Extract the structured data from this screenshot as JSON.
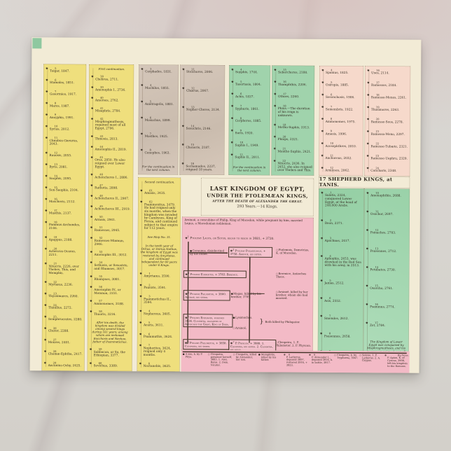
{
  "icons": {
    "crown": "♚",
    "female": "○",
    "male": "●"
  },
  "title_block": {
    "line1": "LAST KINGDOM OF EGYPT,",
    "line2": "UNDER THE PTOLEMÆAN KINGS,",
    "line3": "AFTER THE DEATH OF ALEXANDER THE GREAT.",
    "line4": "293 Years.—14 Kings."
  },
  "shepherd": {
    "header": "17 SHEPHERD KINGS, at TANIS."
  },
  "columns": [
    {
      "title": "kings-of-thebes",
      "entries": [
        {
          "n": "5",
          "t": "Toigar, 1847."
        },
        {
          "n": "6",
          "t": "Stamalas, 1851."
        },
        {
          "n": "7",
          "t": "Gosormies, 1917."
        },
        {
          "n": "8",
          "t": "Mares, 1987."
        },
        {
          "n": "9",
          "t": "Anoyphis, 1991."
        },
        {
          "n": "10",
          "t": "Syrius, 2012."
        },
        {
          "n": "11",
          "t": "Chnubus-Gneurus, 2043."
        },
        {
          "n": "12",
          "t": "Rauosis, 2055."
        },
        {
          "n": "13",
          "t": "Byris, 2081."
        },
        {
          "n": "14",
          "t": "Saophis, 2095."
        },
        {
          "n": "15",
          "t": "Sen-Saophis, 2104."
        },
        {
          "n": "16",
          "t": "Moscheris, 2112."
        },
        {
          "n": "17",
          "t": "Musthis, 2137."
        },
        {
          "n": "18",
          "t": "Pammus-Archondes, 2146."
        },
        {
          "n": "19",
          "t": "Apappus, 2188."
        },
        {
          "n": "20",
          "t": "Achescus-Ocaras, 2211."
        },
        {
          "n": "21",
          "t": "Nitocris, 2226, over Thebes, This, and Memphis."
        },
        {
          "n": "22",
          "t": "Myrtæus, 2236."
        },
        {
          "n": "23",
          "t": "Thyosimares, 2260."
        },
        {
          "n": "24",
          "t": "Thinillus, 2272."
        },
        {
          "n": "25",
          "t": "Semphrucrates, 2280."
        },
        {
          "n": "26",
          "t": "Chuter, 2288."
        },
        {
          "n": "27",
          "t": "Meures, 2401."
        },
        {
          "n": "28",
          "t": "Chomæ-Ephtha, 2417."
        },
        {
          "n": "29",
          "t": "Ancunius-Ochy, 2425."
        }
      ]
    },
    {
      "title": "first-continuation",
      "entries": [
        {
          "note": "First continuation."
        },
        {
          "n": "38",
          "t": "Chebros, 2711."
        },
        {
          "n": "39",
          "t": "Amenophis I., 2736."
        },
        {
          "n": "40",
          "t": "Amerses, 2762."
        },
        {
          "n": "41",
          "t": "Misaphris, 2784."
        },
        {
          "n": "42",
          "t": "Misphragmuthosis, regained most of all Egypt, 2796."
        },
        {
          "n": "43",
          "t": "Thmosis, 2813."
        },
        {
          "n": "44",
          "t": "Amenophis II., 2819."
        },
        {
          "n": "45",
          "t": "Orus, 2850.  He also reigned over Lower Egypt."
        },
        {
          "n": "46",
          "t": "Achencheres I., 2886."
        },
        {
          "n": "47",
          "t": "Rathotis, 2898."
        },
        {
          "n": "48",
          "t": "Achencheres II., 2907."
        },
        {
          "n": "49",
          "t": "Achencheres III., 2919."
        },
        {
          "n": "50",
          "t": "Armais, 2941."
        },
        {
          "n": "51",
          "t": "Ramesses, 2945."
        },
        {
          "n": "52",
          "t": "Ramesses-Miamun, 2946."
        },
        {
          "n": "53",
          "t": "Amenophis III., 3012."
        },
        {
          "n": "54",
          "t": "Sethosis, or Sesostris, and Rhamses, 3017."
        },
        {
          "n": "55",
          "t": "Rhampses, 3081."
        },
        {
          "n": "56",
          "t": "Amenophis IV., or Memnon, 3151."
        },
        {
          "n": "57",
          "t": "Ammenemes, 3188."
        },
        {
          "n": "58",
          "t": "Thuoris, 3216."
        },
        {
          "note": "After his death, the kingdom was divided among several kings during 161 years; among whom are reckoned Bocchoris and Nechao, father of Psammetichus."
        },
        {
          "n": "59",
          "t": "Sabbacon, or So, the Ethiopian, 3377."
        },
        {
          "n": "60",
          "t": "Sevichus, 3389."
        }
      ]
    },
    {
      "title": "kings-of-this",
      "entries": [
        {
          "n": "3",
          "t": "Cerphades, 1831."
        },
        {
          "n": "4",
          "t": "Mochilus, 1855."
        },
        {
          "n": "5",
          "t": "Anistragelis, 1881."
        },
        {
          "n": "6",
          "t": "Mosuchus, 1899."
        },
        {
          "n": "7",
          "t": "Mosthes, 1925."
        },
        {
          "n": "8",
          "t": "Cenephes, 1963."
        },
        {
          "note": "For the continuation in the next column."
        }
      ]
    },
    {
      "title": "kings-of-this-continued",
      "entries": [
        {
          "n": "11",
          "t": "Stelchores, 2006."
        },
        {
          "n": "12",
          "t": "Chœrus, 2067."
        },
        {
          "n": "13",
          "t": "Nepher-Cheres, 2134."
        },
        {
          "n": "14",
          "t": "Sesochris, 2146."
        },
        {
          "n": "15",
          "t": "Cheneris, 2187."
        },
        {
          "n": "16",
          "t": "Sechamudes, 2237, reigned 18 years."
        }
      ]
    },
    {
      "title": "kings-of-memphis",
      "entries": [
        {
          "n": "4",
          "t": "Soyphis, 1744."
        },
        {
          "n": "5",
          "t": "Tosertasis, 1804."
        },
        {
          "n": "6",
          "t": "Achis, 1837."
        },
        {
          "n": "7",
          "t": "Syphuris, 1861."
        },
        {
          "n": "8",
          "t": "Cerpheres, 1885."
        },
        {
          "n": "9",
          "t": "Soris, 1920."
        },
        {
          "n": "10",
          "t": "Suphis I., 1949."
        },
        {
          "n": "11",
          "t": "Suphis II., 2011."
        },
        {
          "note": "For the continuation in the next column."
        }
      ]
    },
    {
      "title": "kings-of-memphis-continued",
      "entries": [
        {
          "n": "15",
          "t": "Sebercheres, 2180."
        },
        {
          "n": "16",
          "t": "Thamphthis, 2206."
        },
        {
          "n": "17",
          "t": "Othoes, 2260."
        },
        {
          "n": "18",
          "t": "Phius.—The duration of his reign is unknown."
        },
        {
          "n": "19",
          "t": "Methu-Suphis, 2313."
        },
        {
          "n": "20",
          "t": "Phiops, 2321."
        },
        {
          "n": "21",
          "t": "Menthe-Suphis, 2421."
        },
        {
          "n": "22",
          "t": "Nitocris, 2436.  In 2452, she also reigned over Thebes and This."
        }
      ]
    },
    {
      "title": "kings-of-tanis",
      "entries": [
        {
          "n": "4",
          "t": "Spanius, 1825."
        },
        {
          "n": "5",
          "t": "Osiropis, 1885."
        },
        {
          "n": "6",
          "t": "Sesonchosis, 1906."
        },
        {
          "n": "7",
          "t": "Semembris, 1922."
        },
        {
          "n": "8",
          "t": "Ammenemes, 1975."
        },
        {
          "n": "9",
          "t": "Amasis, 1996."
        },
        {
          "n": "10",
          "t": "Acesephthres, 2010."
        },
        {
          "n": "11",
          "t": "Anchoreus, 2032."
        },
        {
          "n": "12",
          "t": "Armiyses, 2062."
        }
      ]
    },
    {
      "title": "kings-of-tanis-continued",
      "entries": [
        {
          "n": "16",
          "t": "Uses, 2114."
        },
        {
          "n": "17",
          "t": "Ramesses, 2184."
        },
        {
          "n": "18",
          "t": "Ramesso-Menes, 2261."
        },
        {
          "n": "19",
          "t": "Thusimares, 2263."
        },
        {
          "n": "20",
          "t": "Ramesse-Seos, 2278."
        },
        {
          "n": "21",
          "t": "Ramessa-Meno, 2297."
        },
        {
          "n": "22",
          "t": "Ramesse-Tubæte, 2321."
        },
        {
          "n": "23",
          "t": "Ramesse-Uaphru, 2329."
        },
        {
          "n": "24",
          "t": "Concharis, 2348."
        }
      ]
    },
    {
      "title": "second-continuation",
      "entries": [
        {
          "note": "Second continuation."
        },
        {
          "n": "61",
          "t": "Amasis, 3435."
        },
        {
          "n": "62",
          "t": "Psammenitus, 3479.  He had reigned only six months, when the kingdom was invaded by Cambyses, King of Persia, and continued subject to that empire for 112 years."
        },
        {
          "note": "See Map No. 31."
        },
        {
          "note": "In the tenth year of Ochus, or Darius Nothus, the kingdom of Egypt was restored by Amyrtæus, and continued independent for 60 years under 6 Kings."
        },
        {
          "n": "1",
          "t": "Amyrtæus, 3590."
        },
        {
          "n": "2",
          "t": "Pausiris, 3591."
        },
        {
          "n": "3",
          "t": "Psammetichus II., 3594."
        },
        {
          "n": "4",
          "t": "Nephereus, 3605."
        },
        {
          "n": "5",
          "t": "Acoris, 3611."
        },
        {
          "n": "6",
          "t": "Psammuthis, 3624."
        },
        {
          "n": "7",
          "t": "Nepherites, 3624, reigned only 4 months."
        },
        {
          "n": "8",
          "t": "Nectanebis, 3625."
        }
      ]
    },
    {
      "title": "shepherd-kings-left",
      "entries": [
        {
          "n": "1",
          "t": "Salatis, 2324, conquered Lower Egypt, at the head of 240,000 Arabs."
        },
        {
          "n": "2",
          "t": "Beon, 2371."
        },
        {
          "n": "3",
          "t": "Apachnas, 2417."
        },
        {
          "n": "4",
          "t": "Aphophis, 2453, was drowned in the Red Sea with his army, in 2513."
        },
        {
          "n": "5",
          "t": "Janias, 2512."
        },
        {
          "n": "6",
          "t": "Asis, 2552."
        },
        {
          "n": "7",
          "t": "Smendes, 2612."
        },
        {
          "n": "8",
          "t": "Psusennes, 2658."
        },
        {
          "n": "9",
          "t": "Nephel-Cheres, 2684."
        }
      ]
    },
    {
      "title": "shepherd-kings-right",
      "entries": [
        {
          "n": "10",
          "t": "Amenophthis, 2688."
        },
        {
          "n": "11",
          "t": "Osochor, 2697."
        },
        {
          "n": "12",
          "t": "Psinaches, 2703."
        },
        {
          "n": "13",
          "t": "Psusennes, 2712."
        },
        {
          "n": "14",
          "t": "Petubates, 2730."
        },
        {
          "n": "15",
          "t": "Osorcho, 2761."
        },
        {
          "n": "16",
          "t": "Psammus, 2774."
        },
        {
          "n": "17",
          "t": "Zet, 2784."
        },
        {
          "note": "The Kingdom of Lower Egypt was conquered by Misphragmuthosis, and his successors reigned over all Egypt."
        }
      ]
    }
  ],
  "genealogy": {
    "intro": "Arsinoë, a concubine of Philip, King of Macedon, while pregnant by him, married Lagus, a Macedonian nobleman.",
    "soter_num": "1",
    "soter": "Ptolemy Lagus, or Soter, began to reign in 3681, + 3720.",
    "ceraunus": "Ceraunus, disinherited by his father.",
    "philadelphus_num": "2",
    "philadelphus": "Ptolemy Philadelphus, + 3758.  Arsinoë, his sister.",
    "ptolemais": "Ptolemais, Demetrius, K. of Macedon.",
    "euergetes_num": "3",
    "euergetes": "Ptolemy Euergetes, + 3783.  Berenice.",
    "berenice": "Berenice, Antiochus Theos.",
    "philopator_num": "4",
    "philopator": "Ptolemy Philopator, + 3800.  Arsinoë, his sister.",
    "magas": "Magas, killed by his brother, 3785.",
    "arsinoe": "Arsinoë, killed by her brother, whom she had married.",
    "epiphanes_num": "5",
    "epiphanes": "Ptolemy Epiphanes, poisoned 3824.  Cleopatra, daughter of Antiochus the Great, King of Syria.",
    "lysimachus": "Lysimachus.",
    "arsinoe2": "Arsinoë,",
    "both_killed": "Both killed by Philopator.",
    "philometor_num": "6",
    "philometor": "Ptolemy Philometor, + 3858.  Cleopatra, his sister.",
    "physcon_num": "7",
    "physcon": "P. Physcon, + 3888.  1. Cleopatra, his sister.  2. Cleopatra, his niece.",
    "cleopatra_r": "Cleopatra, 1. P. Philometor.  2. P. Physcon.",
    "bottom": [
      {
        "g": "●",
        "t": "A son, k. by P. Phys."
      },
      {
        "g": "○",
        "t": "Cleopatra, poisoned herself, 3883. 1. Alex. Balas. 2. Dem. Nicator."
      },
      {
        "g": "○",
        "t": "Cleopatra, killed by Alexander, her son."
      },
      {
        "g": "●",
        "t": "Memphitis, killed by his father."
      },
      {
        "g": "♚",
        "n": "8",
        "t": "P. Lathyrus, deposed 3897, restored 3916, + 3923."
      },
      {
        "g": "♚",
        "n": "9",
        "t": "P. Alexander I., deposed 3916, k. in battle, 3917."
      },
      {
        "g": "○",
        "t": "Cleopatra, k. by Tryphæna, 3947."
      },
      {
        "g": "○",
        "t": "Selene, 1. P. Lathyrus. 2. A. Grypus."
      },
      {
        "g": "♚",
        "pre": "By Irene.",
        "t": "P. Apion, K. of Cyrene, 3908, left his kingdom to the Romans."
      }
    ]
  }
}
